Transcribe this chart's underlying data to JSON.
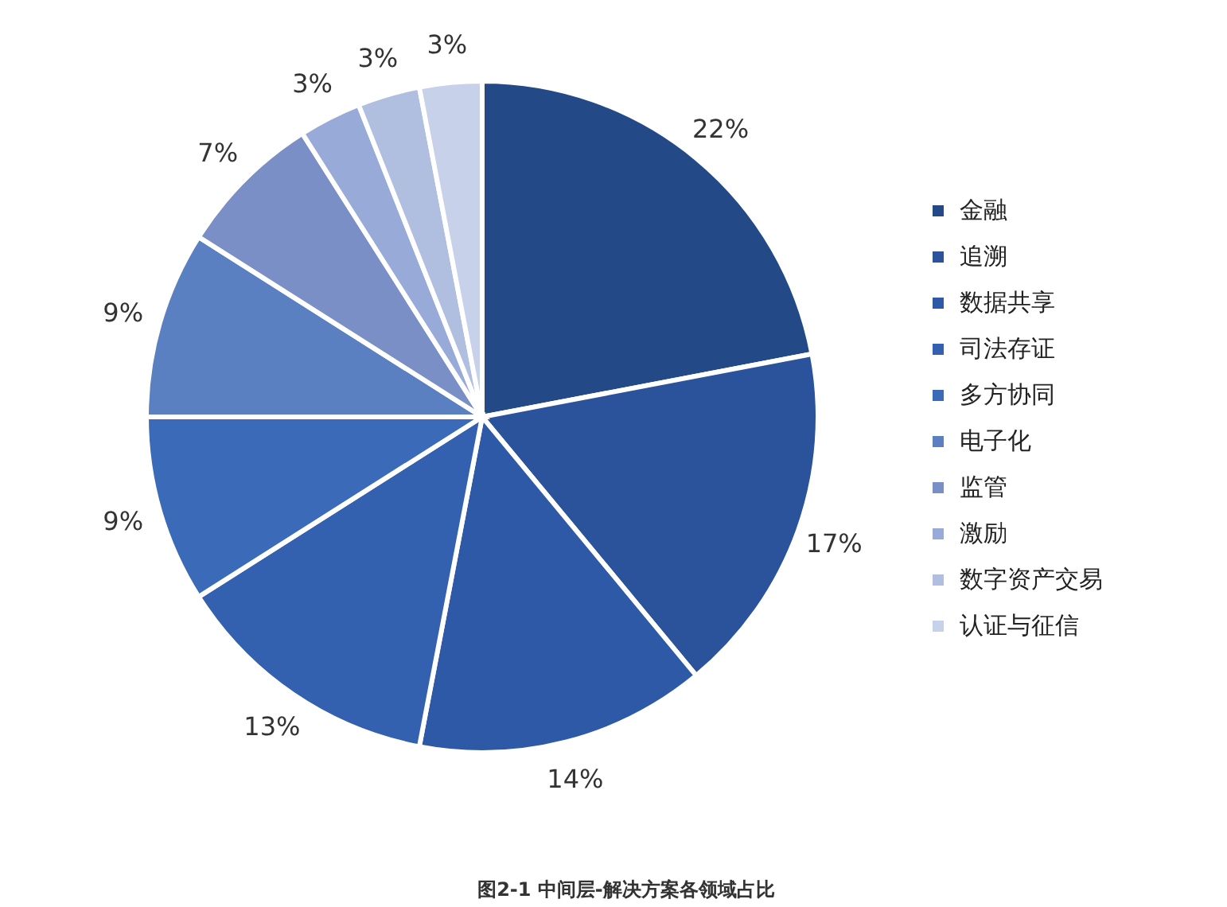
{
  "chart_data": {
    "type": "pie",
    "title": "图2-1 中间层-解决方案各领域占比",
    "categories": [
      "金融",
      "追溯",
      "数据共享",
      "司法存证",
      "多方协同",
      "电子化",
      "监管",
      "激励",
      "数字资产交易",
      "认证与征信"
    ],
    "values": [
      22,
      17,
      14,
      13,
      9,
      9,
      7,
      3,
      3,
      3
    ],
    "colors": [
      "#234a87",
      "#2a539c",
      "#2d59a6",
      "#3361af",
      "#3a6ab8",
      "#5a80c2",
      "#7a8fc6",
      "#98aad8",
      "#b0bee0",
      "#c7d1ea"
    ],
    "value_labels": [
      "22%",
      "17%",
      "14%",
      "13%",
      "9%",
      "9%",
      "7%",
      "3%",
      "3%",
      "3%"
    ],
    "legend": "right"
  }
}
